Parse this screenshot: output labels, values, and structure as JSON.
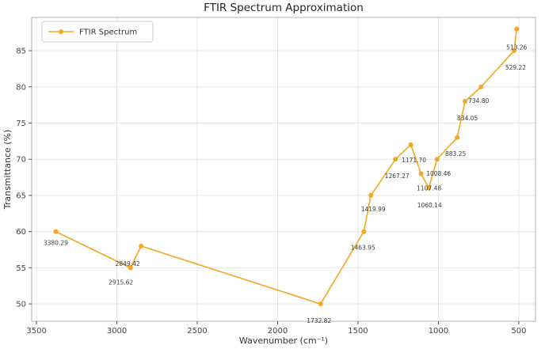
{
  "chart_data": {
    "type": "line",
    "title": "FTIR Spectrum Approximation",
    "xlabel": "Wavenumber (cm⁻¹)",
    "ylabel": "Transmittance (%)",
    "x_axis_reversed": true,
    "xlim": [
      3530,
      396
    ],
    "ylim": [
      47.6,
      89.6
    ],
    "x_ticks": [
      3500,
      3000,
      2500,
      2000,
      1500,
      1000,
      500
    ],
    "y_ticks": [
      50,
      55,
      60,
      65,
      70,
      75,
      80,
      85
    ],
    "grid": true,
    "legend": {
      "position": "upper left",
      "label": "FTIR Spectrum"
    },
    "colors": {
      "line": "#f5a623",
      "grid": "#e5e5e5",
      "spine": "#b0b0b0",
      "tick": "#555555"
    },
    "series": [
      {
        "name": "FTIR Spectrum",
        "color": "#f5a623",
        "marker": "circle",
        "points": [
          {
            "x": 3380.29,
            "y": 60,
            "annotation": "3380.29",
            "label_dx": 0,
            "label_dy": 17
          },
          {
            "x": 2915.62,
            "y": 55,
            "annotation": "2915.62",
            "label_dx": -12,
            "label_dy": 21
          },
          {
            "x": 2849.42,
            "y": 58,
            "annotation": "2849.42",
            "label_dx": -17,
            "label_dy": 25
          },
          {
            "x": 1732.82,
            "y": 50,
            "annotation": "1732.82",
            "label_dx": -2,
            "label_dy": 24
          },
          {
            "x": 1463.95,
            "y": 60,
            "annotation": "1463.95",
            "label_dx": -1,
            "label_dy": 23
          },
          {
            "x": 1419.99,
            "y": 65,
            "annotation": "1419.99",
            "label_dx": 3,
            "label_dy": 20
          },
          {
            "x": 1267.27,
            "y": 70,
            "annotation": "1267.27",
            "label_dx": 2,
            "label_dy": 24
          },
          {
            "x": 1171.7,
            "y": 72,
            "annotation": "1171.70",
            "label_dx": 4,
            "label_dy": 22
          },
          {
            "x": 1107.48,
            "y": 68,
            "annotation": "1107.48",
            "label_dx": 10,
            "label_dy": 21
          },
          {
            "x": 1060.14,
            "y": 66,
            "annotation": "1060.14",
            "label_dx": 1,
            "label_dy": 24
          },
          {
            "x": 1008.46,
            "y": 70,
            "annotation": "1008.46",
            "label_dx": 2,
            "label_dy": 21
          },
          {
            "x": 883.25,
            "y": 73,
            "annotation": "883.25",
            "label_dx": -2,
            "label_dy": 23
          },
          {
            "x": 834.05,
            "y": 78,
            "annotation": "834.05",
            "label_dx": 3,
            "label_dy": 24
          },
          {
            "x": 734.8,
            "y": 80,
            "annotation": "734.80",
            "label_dx": -3,
            "label_dy": 20
          },
          {
            "x": 529.22,
            "y": 85,
            "annotation": "529.22",
            "label_dx": 2,
            "label_dy": 24
          },
          {
            "x": 513.26,
            "y": 88,
            "annotation": "513.26",
            "label_dx": 0,
            "label_dy": 26
          }
        ]
      }
    ]
  }
}
